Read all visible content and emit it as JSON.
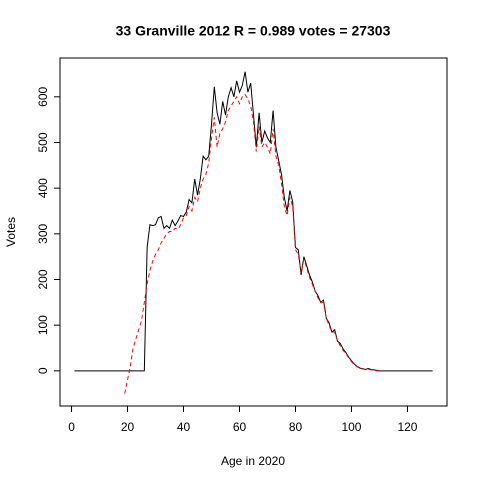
{
  "chart_data": {
    "type": "line",
    "title": "33 Granville 2012 R = 0.989 votes = 27303",
    "x_label": "Age in 2020",
    "y_label": "Votes",
    "xlim": [
      -4.12,
      134.12
    ],
    "ylim": [
      -77,
      685
    ],
    "xticks": [
      0,
      20,
      40,
      60,
      80,
      100,
      120
    ],
    "yticks": [
      0,
      100,
      200,
      300,
      400,
      500,
      600
    ],
    "x": [
      1,
      2,
      3,
      4,
      5,
      6,
      7,
      8,
      9,
      10,
      11,
      12,
      13,
      14,
      15,
      16,
      17,
      18,
      19,
      20,
      21,
      22,
      23,
      24,
      25,
      26,
      27,
      28,
      29,
      30,
      31,
      32,
      33,
      34,
      35,
      36,
      37,
      38,
      39,
      40,
      41,
      42,
      43,
      44,
      45,
      46,
      47,
      48,
      49,
      50,
      51,
      52,
      53,
      54,
      55,
      56,
      57,
      58,
      59,
      60,
      61,
      62,
      63,
      64,
      65,
      66,
      67,
      68,
      69,
      70,
      71,
      72,
      73,
      74,
      75,
      76,
      77,
      78,
      79,
      80,
      81,
      82,
      83,
      84,
      85,
      86,
      87,
      88,
      89,
      90,
      91,
      92,
      93,
      94,
      95,
      96,
      97,
      98,
      99,
      100,
      101,
      102,
      103,
      104,
      105,
      106,
      107,
      108,
      109,
      110,
      111,
      112,
      113,
      114,
      115,
      116,
      117,
      118,
      119,
      120,
      121,
      122,
      123,
      124,
      125,
      126,
      127,
      128,
      129
    ],
    "series": [
      {
        "color": "#000000",
        "dash": false,
        "values": [
          0,
          0,
          0,
          0,
          0,
          0,
          0,
          0,
          0,
          0,
          0,
          0,
          0,
          0,
          0,
          0,
          0,
          0,
          0,
          0,
          0,
          0,
          0,
          0,
          0,
          0,
          270,
          320,
          318,
          320,
          335,
          338,
          312,
          318,
          312,
          330,
          318,
          328,
          340,
          338,
          348,
          375,
          368,
          420,
          385,
          420,
          470,
          462,
          470,
          540,
          622,
          565,
          540,
          590,
          560,
          600,
          620,
          600,
          635,
          610,
          625,
          655,
          610,
          630,
          560,
          490,
          565,
          500,
          525,
          510,
          500,
          570,
          490,
          460,
          430,
          380,
          350,
          395,
          370,
          270,
          265,
          210,
          250,
          230,
          210,
          195,
          175,
          165,
          150,
          155,
          115,
          105,
          85,
          90,
          65,
          60,
          48,
          40,
          30,
          22,
          15,
          10,
          6,
          5,
          3,
          5,
          3,
          2,
          1,
          0,
          0,
          0,
          0,
          0,
          0,
          0,
          0,
          0,
          0,
          0,
          0,
          0,
          0,
          0,
          0,
          0,
          0,
          0,
          0
        ]
      },
      {
        "color": "#ff0000",
        "dash": true,
        "values": [
          null,
          null,
          null,
          null,
          null,
          null,
          null,
          null,
          null,
          null,
          null,
          null,
          null,
          null,
          null,
          null,
          null,
          null,
          -50,
          -20,
          10,
          50,
          70,
          90,
          110,
          150,
          190,
          220,
          240,
          255,
          265,
          280,
          290,
          300,
          305,
          305,
          312,
          310,
          320,
          335,
          340,
          360,
          350,
          380,
          370,
          400,
          420,
          430,
          455,
          510,
          555,
          490,
          520,
          530,
          545,
          570,
          580,
          590,
          600,
          585,
          600,
          605,
          595,
          580,
          545,
          480,
          535,
          490,
          500,
          490,
          475,
          530,
          470,
          450,
          410,
          360,
          340,
          380,
          360,
          265,
          255,
          215,
          245,
          225,
          205,
          190,
          175,
          160,
          150,
          150,
          115,
          100,
          85,
          85,
          65,
          55,
          45,
          38,
          28,
          20,
          14,
          9,
          6,
          4,
          3,
          3,
          2,
          1,
          0,
          0,
          null,
          null,
          null,
          null,
          null,
          null,
          null,
          null,
          null,
          null,
          null,
          null,
          null,
          null,
          null,
          null,
          null,
          null,
          null
        ]
      }
    ]
  }
}
